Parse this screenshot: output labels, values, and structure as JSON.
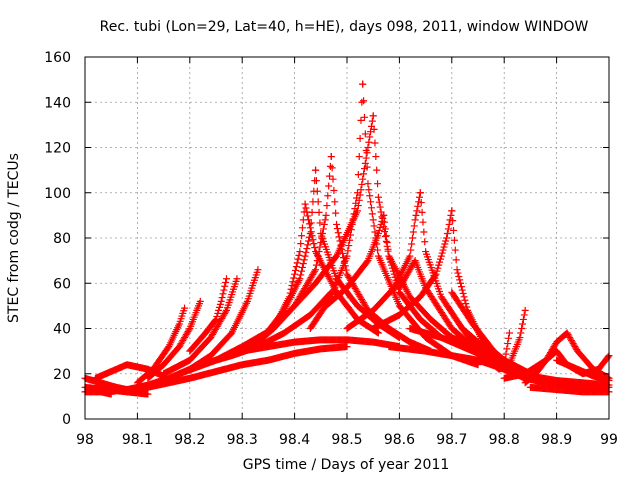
{
  "chart_data": {
    "type": "scatter",
    "title": "Rec. tubi (Lon=29, Lat=40, h=HE), days 098, 2011, window WINDOW",
    "xlabel": "GPS time / Days of year 2011",
    "ylabel": "STEC from codg / TECUs",
    "xlim": [
      98,
      99
    ],
    "ylim": [
      0,
      160
    ],
    "xticks": [
      "98",
      "98.1",
      "98.2",
      "98.3",
      "98.4",
      "98.5",
      "98.6",
      "98.7",
      "98.8",
      "98.9",
      "99"
    ],
    "yticks": [
      "0",
      "20",
      "40",
      "60",
      "80",
      "100",
      "120",
      "140",
      "160"
    ],
    "grid": true,
    "legend": "none",
    "marker": "+",
    "color": "#ff0000",
    "series": [
      {
        "x": [
          98.0,
          98.03,
          98.06,
          98.1
        ],
        "y": [
          18,
          16,
          14,
          12
        ]
      },
      {
        "x": [
          98.0,
          98.04,
          98.08,
          98.12
        ],
        "y": [
          14,
          13,
          12,
          11
        ]
      },
      {
        "x": [
          98.0,
          98.03,
          98.05
        ],
        "y": [
          12,
          12,
          11
        ]
      },
      {
        "x": [
          98.02,
          98.05,
          98.08,
          98.12,
          98.15
        ],
        "y": [
          18,
          21,
          24,
          22,
          19
        ]
      },
      {
        "x": [
          98.04,
          98.08,
          98.12,
          98.16,
          98.2,
          98.24
        ],
        "y": [
          12,
          13,
          15,
          18,
          22,
          26
        ]
      },
      {
        "x": [
          98.1,
          98.13,
          98.16,
          98.18,
          98.19
        ],
        "y": [
          16,
          22,
          32,
          42,
          49
        ]
      },
      {
        "x": [
          98.08,
          98.12,
          98.16,
          98.2,
          98.25,
          98.3,
          98.35,
          98.4,
          98.45,
          98.5
        ],
        "y": [
          12,
          14,
          16,
          18,
          21,
          24,
          26,
          29,
          31,
          32
        ]
      },
      {
        "x": [
          98.12,
          98.15,
          98.18,
          98.2,
          98.22
        ],
        "y": [
          18,
          24,
          32,
          40,
          52
        ]
      },
      {
        "x": [
          98.15,
          98.2,
          98.24,
          98.27,
          98.29
        ],
        "y": [
          20,
          26,
          36,
          48,
          62
        ]
      },
      {
        "x": [
          98.2,
          98.24,
          98.28,
          98.31,
          98.33
        ],
        "y": [
          22,
          28,
          38,
          52,
          66
        ]
      },
      {
        "x": [
          98.27,
          98.26,
          98.25,
          98.23,
          98.2
        ],
        "y": [
          62,
          52,
          44,
          38,
          30
        ]
      },
      {
        "x": [
          98.18,
          98.25,
          98.3,
          98.35,
          98.4,
          98.45,
          98.5,
          98.55,
          98.6
        ],
        "y": [
          20,
          26,
          30,
          32,
          34,
          35,
          35,
          34,
          32
        ]
      },
      {
        "x": [
          98.22,
          98.28,
          98.33,
          98.38,
          98.43,
          98.47
        ],
        "y": [
          24,
          28,
          32,
          38,
          46,
          56
        ]
      },
      {
        "x": [
          98.25,
          98.3,
          98.36,
          98.4,
          98.44,
          98.46,
          98.47
        ],
        "y": [
          26,
          32,
          40,
          50,
          66,
          90,
          116
        ]
      },
      {
        "x": [
          98.3,
          98.34,
          98.38,
          98.41,
          98.43,
          98.44
        ],
        "y": [
          30,
          36,
          48,
          62,
          82,
          110
        ]
      },
      {
        "x": [
          98.32,
          98.36,
          98.39,
          98.41,
          98.42
        ],
        "y": [
          32,
          40,
          54,
          74,
          95
        ]
      },
      {
        "x": [
          98.43,
          98.47,
          98.5,
          98.52,
          98.53
        ],
        "y": [
          40,
          54,
          72,
          100,
          148
        ]
      },
      {
        "x": [
          98.53,
          98.54,
          98.56,
          98.6,
          98.65,
          98.7,
          98.75
        ],
        "y": [
          148,
          104,
          72,
          50,
          36,
          28,
          24
        ]
      },
      {
        "x": [
          98.4,
          98.44,
          98.48,
          98.52,
          98.54,
          98.55
        ],
        "y": [
          50,
          60,
          72,
          92,
          120,
          134
        ]
      },
      {
        "x": [
          98.55,
          98.56,
          98.58,
          98.62,
          98.66,
          98.7,
          98.76,
          98.8
        ],
        "y": [
          134,
          98,
          72,
          54,
          44,
          36,
          30,
          26
        ]
      },
      {
        "x": [
          98.47,
          98.48,
          98.5,
          98.54,
          98.58,
          98.62,
          98.66
        ],
        "y": [
          116,
          86,
          64,
          48,
          40,
          34,
          30
        ]
      },
      {
        "x": [
          98.44,
          98.45,
          98.48,
          98.52,
          98.56,
          98.6
        ],
        "y": [
          110,
          82,
          62,
          50,
          42,
          36
        ]
      },
      {
        "x": [
          98.42,
          98.44,
          98.48,
          98.52,
          98.56
        ],
        "y": [
          95,
          74,
          56,
          44,
          38
        ]
      },
      {
        "x": [
          98.46,
          98.5,
          98.54,
          98.56,
          98.57
        ],
        "y": [
          50,
          58,
          70,
          82,
          90
        ]
      },
      {
        "x": [
          98.57,
          98.58,
          98.6,
          98.64,
          98.68
        ],
        "y": [
          90,
          72,
          56,
          44,
          36
        ]
      },
      {
        "x": [
          98.5,
          98.55,
          98.59,
          98.62,
          98.63,
          98.64
        ],
        "y": [
          40,
          48,
          58,
          72,
          88,
          100
        ]
      },
      {
        "x": [
          98.64,
          98.65,
          98.68,
          98.72,
          98.76,
          98.8
        ],
        "y": [
          100,
          74,
          54,
          40,
          32,
          26
        ]
      },
      {
        "x": [
          98.55,
          98.6,
          98.64,
          98.67,
          98.69,
          98.7
        ],
        "y": [
          40,
          46,
          54,
          64,
          80,
          92
        ]
      },
      {
        "x": [
          98.7,
          98.71,
          98.73,
          98.76,
          98.8,
          98.85
        ],
        "y": [
          92,
          66,
          48,
          34,
          26,
          20
        ]
      },
      {
        "x": [
          98.6,
          98.62,
          98.63,
          98.65,
          98.7,
          98.75,
          98.8,
          98.85
        ],
        "y": [
          58,
          66,
          70,
          58,
          40,
          30,
          24,
          20
        ]
      },
      {
        "x": [
          98.58,
          98.65,
          98.7,
          98.75,
          98.8,
          98.85,
          98.9,
          98.95,
          99.0
        ],
        "y": [
          32,
          30,
          28,
          26,
          22,
          19,
          17,
          16,
          15
        ]
      },
      {
        "x": [
          98.62,
          98.68,
          98.74,
          98.8,
          98.86,
          98.92,
          98.98
        ],
        "y": [
          40,
          36,
          30,
          24,
          18,
          15,
          13
        ]
      },
      {
        "x": [
          98.7,
          98.74,
          98.78,
          98.8,
          98.81
        ],
        "y": [
          56,
          42,
          30,
          24,
          38
        ]
      },
      {
        "x": [
          98.72,
          98.76,
          98.79,
          98.81,
          98.83,
          98.84
        ],
        "y": [
          40,
          28,
          22,
          24,
          36,
          48
        ]
      },
      {
        "x": [
          98.76,
          98.8,
          98.84,
          98.88,
          98.92,
          98.96,
          99.0
        ],
        "y": [
          26,
          22,
          18,
          16,
          15,
          14,
          14
        ]
      },
      {
        "x": [
          98.8,
          98.84,
          98.88,
          98.9,
          98.91,
          98.92
        ],
        "y": [
          18,
          20,
          26,
          34,
          36,
          38
        ]
      },
      {
        "x": [
          98.92,
          98.94,
          98.97,
          99.0
        ],
        "y": [
          38,
          30,
          22,
          18
        ]
      },
      {
        "x": [
          98.84,
          98.86,
          98.88,
          98.9,
          98.92,
          98.95,
          98.98,
          99.0
        ],
        "y": [
          16,
          20,
          26,
          30,
          24,
          20,
          22,
          28
        ]
      },
      {
        "x": [
          98.85,
          98.9,
          98.95,
          99.0
        ],
        "y": [
          14,
          13,
          12,
          12
        ]
      },
      {
        "x": [
          98.9,
          98.94,
          98.97,
          99.0
        ],
        "y": [
          26,
          22,
          19,
          17
        ]
      }
    ]
  }
}
